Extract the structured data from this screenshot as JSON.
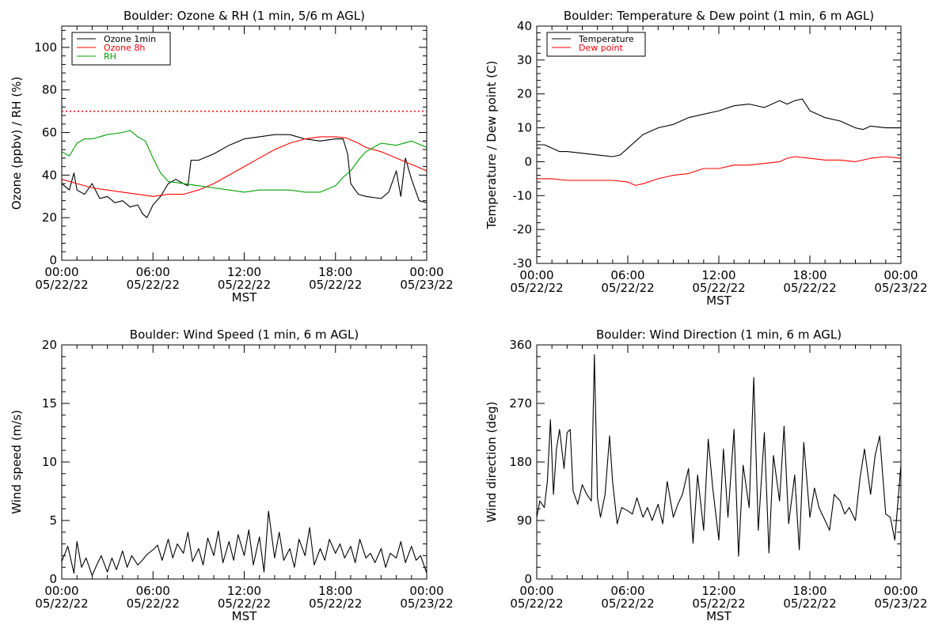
{
  "figure": {
    "x_axis_label": "MST"
  },
  "colors": {
    "black": "#000000",
    "red": "#ff0000",
    "green": "#00a000"
  },
  "chart_data": [
    {
      "id": "ozone",
      "type": "line",
      "title": "Boulder: Ozone & RH (1 min, 5/6 m AGL)",
      "ylabel": "Ozone (ppbv) / RH (%)",
      "xlabel": "MST",
      "xlim": [
        0,
        24
      ],
      "ylim": [
        0,
        110
      ],
      "yticks": [
        0,
        20,
        40,
        60,
        80,
        100
      ],
      "xticks": [
        {
          "value": 0,
          "time": "00:00",
          "date": "05/22/22"
        },
        {
          "value": 6,
          "time": "06:00",
          "date": "05/22/22"
        },
        {
          "value": 12,
          "time": "12:00",
          "date": "05/22/22"
        },
        {
          "value": 18,
          "time": "18:00",
          "date": "05/22/22"
        },
        {
          "value": 24,
          "time": "00:00",
          "date": "05/23/22"
        }
      ],
      "legend_position": "top-left",
      "reference_line": {
        "value": 70,
        "color": "#ff0000",
        "style": "dotted"
      },
      "series": [
        {
          "name": "Ozone 1min",
          "color": "#000000",
          "x": [
            0,
            0.5,
            0.8,
            1,
            1.5,
            2,
            2.5,
            3,
            3.5,
            4,
            4.5,
            5,
            5.3,
            5.6,
            6,
            6.5,
            7,
            7.5,
            8,
            8.3,
            8.5,
            9,
            10,
            11,
            12,
            13,
            14,
            15,
            16,
            17,
            18,
            18.5,
            18.8,
            19,
            19.5,
            20,
            21,
            21.5,
            22,
            22.3,
            22.6,
            23,
            23.5,
            24
          ],
          "y": [
            36,
            33,
            41,
            33,
            31,
            36,
            29,
            30,
            27,
            28,
            25,
            26,
            22,
            20,
            26,
            30,
            36,
            38,
            36,
            35,
            47,
            47,
            50,
            54,
            57,
            58,
            59,
            59,
            57,
            56,
            57,
            57,
            50,
            36,
            31,
            30,
            29,
            32,
            42,
            30,
            48,
            38,
            28,
            27
          ]
        },
        {
          "name": "Ozone 8h",
          "color": "#ff0000",
          "x": [
            0,
            1,
            2,
            3,
            4,
            5,
            6,
            7,
            8,
            9,
            10,
            11,
            12,
            13,
            14,
            15,
            16,
            17,
            18,
            18.7,
            19.5,
            20,
            21,
            22,
            23,
            24
          ],
          "y": [
            38,
            36,
            34,
            33,
            32,
            31,
            30,
            31,
            31,
            33,
            36,
            40,
            44,
            48,
            52,
            55,
            57,
            58,
            58,
            57.5,
            55,
            53,
            51,
            48,
            45,
            42
          ]
        },
        {
          "name": "RH",
          "color": "#00a000",
          "x": [
            0,
            0.5,
            1,
            1.5,
            2,
            3,
            4,
            4.5,
            5,
            5.5,
            6,
            6.5,
            7,
            8,
            9,
            10,
            11,
            12,
            13,
            14,
            15,
            16,
            17,
            18,
            18.5,
            19,
            19.5,
            20,
            21,
            22,
            23,
            24
          ],
          "y": [
            51,
            49,
            55,
            57,
            57,
            59,
            60,
            61,
            58,
            56,
            48,
            41,
            37,
            36,
            35,
            34,
            33,
            32,
            33,
            33,
            33,
            32,
            32,
            35,
            39,
            42,
            47,
            51,
            55,
            54,
            56,
            53
          ]
        }
      ]
    },
    {
      "id": "temp",
      "type": "line",
      "title": "Boulder: Temperature & Dew point (1 min, 6 m AGL)",
      "ylabel": "Temperature / Dew point (C)",
      "xlabel": "MST",
      "xlim": [
        0,
        24
      ],
      "ylim": [
        -30,
        40
      ],
      "yticks": [
        -30,
        -20,
        -10,
        0,
        10,
        20,
        30,
        40
      ],
      "xticks": [
        {
          "value": 0,
          "time": "00:00",
          "date": "05/22/22"
        },
        {
          "value": 6,
          "time": "06:00",
          "date": "05/22/22"
        },
        {
          "value": 12,
          "time": "12:00",
          "date": "05/22/22"
        },
        {
          "value": 18,
          "time": "18:00",
          "date": "05/22/22"
        },
        {
          "value": 24,
          "time": "00:00",
          "date": "05/23/22"
        }
      ],
      "legend_position": "top-left",
      "series": [
        {
          "name": "Temperature",
          "color": "#000000",
          "x": [
            0,
            0.5,
            1,
            1.5,
            2,
            3,
            4,
            5,
            5.5,
            6,
            7,
            8,
            9,
            10,
            11,
            12,
            13,
            14,
            15,
            16,
            16.5,
            17,
            17.5,
            18,
            18.5,
            19,
            20,
            21,
            21.5,
            22,
            23,
            24
          ],
          "y": [
            5,
            5,
            4,
            3,
            3,
            2.5,
            2,
            1.5,
            2,
            4,
            8,
            10,
            11,
            13,
            14,
            15,
            16.5,
            17,
            16,
            18,
            17,
            18,
            18.5,
            15,
            14,
            13,
            12,
            10,
            9.5,
            10.5,
            10,
            10
          ]
        },
        {
          "name": "Dew point",
          "color": "#ff0000",
          "x": [
            0,
            1,
            2,
            3,
            4,
            5,
            6,
            6.5,
            7,
            8,
            9,
            10,
            11,
            12,
            13,
            14,
            15,
            16,
            16.5,
            17,
            18,
            19,
            20,
            21,
            22,
            23,
            24
          ],
          "y": [
            -5,
            -5,
            -5.5,
            -5.5,
            -5.5,
            -5.5,
            -6,
            -7,
            -6.5,
            -5,
            -4,
            -3.5,
            -2,
            -2,
            -1,
            -1,
            -0.5,
            0,
            1,
            1.5,
            1,
            0.5,
            0.5,
            0,
            1,
            1.5,
            1
          ]
        }
      ]
    },
    {
      "id": "wspd",
      "type": "line",
      "title": "Boulder: Wind Speed (1 min, 6 m AGL)",
      "ylabel": "Wind speed (m/s)",
      "xlabel": "MST",
      "xlim": [
        0,
        24
      ],
      "ylim": [
        0,
        20
      ],
      "yticks": [
        0,
        5,
        10,
        15,
        20
      ],
      "xticks": [
        {
          "value": 0,
          "time": "00:00",
          "date": "05/22/22"
        },
        {
          "value": 6,
          "time": "06:00",
          "date": "05/22/22"
        },
        {
          "value": 12,
          "time": "12:00",
          "date": "05/22/22"
        },
        {
          "value": 18,
          "time": "18:00",
          "date": "05/22/22"
        },
        {
          "value": 24,
          "time": "00:00",
          "date": "05/23/22"
        }
      ],
      "series": [
        {
          "name": "",
          "color": "#000000",
          "x": [
            0,
            0.4,
            0.8,
            1,
            1.3,
            1.6,
            2,
            2.3,
            2.6,
            3,
            3.3,
            3.6,
            4,
            4.3,
            4.6,
            5,
            5.3,
            5.6,
            6,
            6.3,
            6.6,
            7,
            7.3,
            7.6,
            8,
            8.3,
            8.6,
            9,
            9.3,
            9.6,
            10,
            10.3,
            10.6,
            11,
            11.3,
            11.6,
            12,
            12.3,
            12.6,
            13,
            13.3,
            13.6,
            14,
            14.3,
            14.6,
            15,
            15.3,
            15.6,
            16,
            16.3,
            16.6,
            17,
            17.3,
            17.6,
            18,
            18.3,
            18.6,
            19,
            19.3,
            19.6,
            20,
            20.3,
            20.6,
            21,
            21.3,
            21.6,
            22,
            22.3,
            22.6,
            23,
            23.3,
            23.6,
            24
          ],
          "y": [
            1.5,
            2.8,
            0.5,
            3.2,
            1,
            1.8,
            0.3,
            1.2,
            2,
            0.6,
            1.8,
            0.8,
            2.4,
            1,
            2,
            1.2,
            1.6,
            2.1,
            2.5,
            2.9,
            1.6,
            3.4,
            1.8,
            3,
            2.2,
            4,
            1.5,
            2.6,
            1.2,
            3.5,
            2,
            4.1,
            1.4,
            3.2,
            1.6,
            3.8,
            2,
            4.2,
            1.2,
            3.6,
            0.6,
            5.8,
            1.8,
            4,
            1.6,
            2.6,
            1,
            3.4,
            2,
            4.4,
            1.2,
            2.6,
            1.6,
            3.4,
            2.2,
            3,
            1.8,
            2.8,
            1.4,
            3.4,
            1.8,
            2.2,
            1.4,
            2.6,
            1,
            2.2,
            1.8,
            3.2,
            1.4,
            2.8,
            1.6,
            2,
            0.5
          ]
        }
      ]
    },
    {
      "id": "wdir",
      "type": "line",
      "title": "Boulder: Wind Direction (1 min, 6 m AGL)",
      "ylabel": "Wind direction (deg)",
      "xlabel": "MST",
      "xlim": [
        0,
        24
      ],
      "ylim": [
        0,
        360
      ],
      "yticks": [
        0,
        90,
        180,
        270,
        360
      ],
      "xticks": [
        {
          "value": 0,
          "time": "00:00",
          "date": "05/22/22"
        },
        {
          "value": 6,
          "time": "06:00",
          "date": "05/22/22"
        },
        {
          "value": 12,
          "time": "12:00",
          "date": "05/22/22"
        },
        {
          "value": 18,
          "time": "18:00",
          "date": "05/22/22"
        },
        {
          "value": 24,
          "time": "00:00",
          "date": "05/23/22"
        }
      ],
      "series": [
        {
          "name": "",
          "color": "#000000",
          "x": [
            0,
            0.2,
            0.5,
            0.7,
            0.9,
            1.1,
            1.3,
            1.5,
            1.8,
            2,
            2.2,
            2.4,
            2.7,
            3,
            3.3,
            3.6,
            3.8,
            4,
            4.2,
            4.5,
            4.8,
            5,
            5.3,
            5.6,
            6,
            6.3,
            6.6,
            7,
            7.3,
            7.6,
            8,
            8.3,
            8.6,
            9,
            9.3,
            9.6,
            10,
            10.3,
            10.6,
            11,
            11.3,
            11.6,
            12,
            12.3,
            12.6,
            13,
            13.3,
            13.6,
            14,
            14.3,
            14.6,
            15,
            15.3,
            15.6,
            16,
            16.3,
            16.6,
            17,
            17.3,
            17.6,
            18,
            18.3,
            18.6,
            19,
            19.3,
            19.6,
            20,
            20.3,
            20.6,
            21,
            21.3,
            21.6,
            22,
            22.3,
            22.6,
            23,
            23.3,
            23.6,
            24
          ],
          "y": [
            95,
            120,
            110,
            150,
            245,
            130,
            200,
            230,
            170,
            225,
            230,
            135,
            115,
            145,
            130,
            120,
            345,
            125,
            95,
            130,
            220,
            150,
            85,
            110,
            105,
            100,
            125,
            95,
            110,
            90,
            115,
            85,
            150,
            95,
            115,
            130,
            170,
            55,
            160,
            75,
            215,
            140,
            60,
            200,
            95,
            230,
            35,
            175,
            110,
            310,
            75,
            225,
            40,
            190,
            120,
            235,
            85,
            160,
            45,
            210,
            95,
            140,
            110,
            90,
            75,
            130,
            120,
            100,
            110,
            90,
            155,
            200,
            130,
            190,
            220,
            100,
            95,
            60,
            175
          ]
        }
      ]
    }
  ]
}
